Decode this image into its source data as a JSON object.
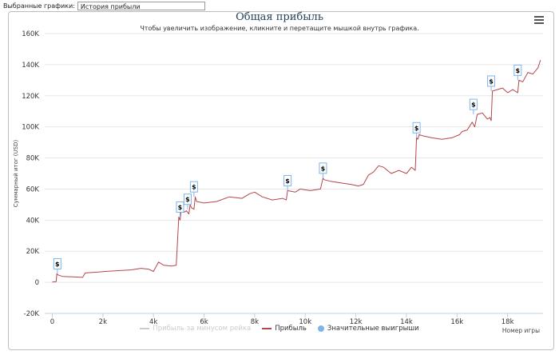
{
  "toolbar": {
    "label": "Выбранные графики:",
    "selected": "История прибыли"
  },
  "chart_data": {
    "type": "line",
    "title": "Общая прибыль",
    "subtitle": "Чтобы увеличить изображение, кликните и перетащите мышкой внутрь графика.",
    "xlabel": "Номер игры",
    "ylabel": "Суммарный итог (USD)",
    "xlim": [
      -300,
      19400
    ],
    "ylim": [
      -20000,
      160000
    ],
    "x_ticks": [
      0,
      2000,
      4000,
      6000,
      8000,
      10000,
      12000,
      14000,
      16000,
      18000
    ],
    "x_tick_labels": [
      "0",
      "2k",
      "4k",
      "6k",
      "8k",
      "10k",
      "12k",
      "14k",
      "16k",
      "18k"
    ],
    "y_ticks": [
      -20000,
      0,
      20000,
      40000,
      60000,
      80000,
      100000,
      120000,
      140000,
      160000
    ],
    "y_tick_labels": [
      "-20K",
      "0",
      "20K",
      "40K",
      "60K",
      "80K",
      "100K",
      "120K",
      "140K",
      "160K"
    ],
    "series": [
      {
        "name": "Прибыль",
        "color": "#b4464b",
        "x": [
          0,
          150,
          180,
          220,
          400,
          800,
          1200,
          1300,
          1700,
          2100,
          2600,
          3100,
          3500,
          3800,
          4000,
          4200,
          4400,
          4700,
          4900,
          5000,
          5050,
          5100,
          5200,
          5300,
          5400,
          5450,
          5500,
          5600,
          5650,
          5700,
          6000,
          6500,
          7000,
          7500,
          7800,
          8000,
          8300,
          8700,
          9100,
          9250,
          9300,
          9600,
          9800,
          10200,
          10600,
          10700,
          10750,
          11000,
          11400,
          11800,
          12100,
          12300,
          12500,
          12700,
          12900,
          13100,
          13400,
          13700,
          14000,
          14200,
          14350,
          14400,
          14450,
          14500,
          14700,
          15000,
          15400,
          15800,
          16100,
          16200,
          16400,
          16600,
          16700,
          16800,
          17000,
          17200,
          17300,
          17350,
          17400,
          17600,
          17800,
          18000,
          18200,
          18400,
          18450,
          18600,
          18800,
          19000,
          19200,
          19300
        ],
        "y": [
          200,
          400,
          5500,
          4800,
          3800,
          3500,
          3200,
          6000,
          6500,
          7000,
          7500,
          8000,
          9000,
          8500,
          7000,
          13000,
          11000,
          10500,
          11000,
          42000,
          40000,
          47000,
          45000,
          46000,
          44000,
          50000,
          48000,
          47000,
          55000,
          52000,
          51000,
          52000,
          55000,
          54000,
          57000,
          58000,
          55000,
          53000,
          54000,
          53000,
          59000,
          58000,
          60000,
          59000,
          60000,
          67000,
          66000,
          65000,
          64000,
          63000,
          62000,
          63000,
          69000,
          71000,
          75000,
          74000,
          70000,
          72000,
          70000,
          74000,
          72000,
          93000,
          92000,
          95000,
          94000,
          93000,
          92000,
          93000,
          95000,
          97000,
          98000,
          103000,
          100000,
          108000,
          109000,
          105000,
          106000,
          104000,
          123000,
          124000,
          125000,
          122000,
          124000,
          122000,
          130000,
          129000,
          135000,
          134000,
          138000,
          143000
        ]
      }
    ],
    "markers": [
      {
        "x": 200,
        "y": 5500
      },
      {
        "x": 5050,
        "y": 42000
      },
      {
        "x": 5350,
        "y": 47000
      },
      {
        "x": 5600,
        "y": 55000
      },
      {
        "x": 9300,
        "y": 59000
      },
      {
        "x": 10700,
        "y": 67000
      },
      {
        "x": 14400,
        "y": 93000
      },
      {
        "x": 16650,
        "y": 108000
      },
      {
        "x": 17350,
        "y": 123000
      },
      {
        "x": 18400,
        "y": 130000
      }
    ],
    "marker_symbol": "$",
    "legend": [
      {
        "label": "Прибыль за минусом рейка",
        "color": "#cccccc",
        "style": "line",
        "inactive": true
      },
      {
        "label": "Прибыль",
        "color": "#b4464b",
        "style": "line"
      },
      {
        "label": "Значительные выигрыши",
        "color": "#7cb5ec",
        "style": "dot"
      }
    ],
    "grid": "y"
  }
}
